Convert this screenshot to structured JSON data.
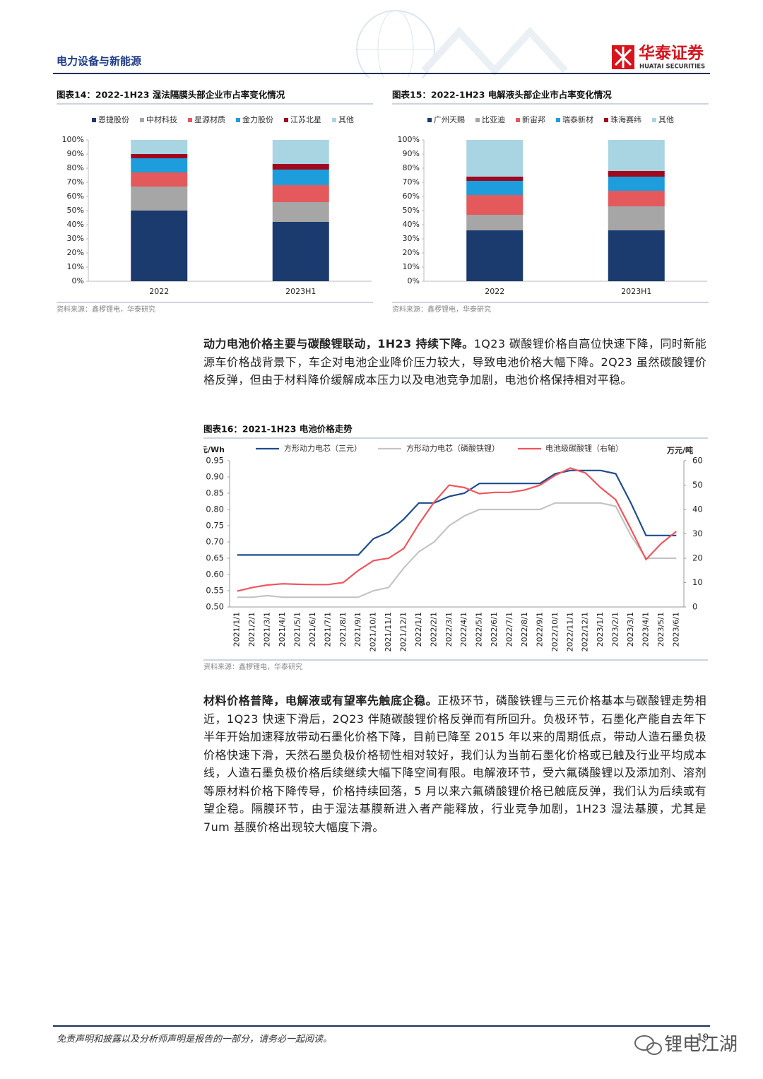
{
  "header": {
    "section": "电力设备与新能源",
    "brand": "华泰证券",
    "brand_en": "HUATAI SECURITIES"
  },
  "chart_data": [
    {
      "type": "bar",
      "stacked": true,
      "title": "图表14：2022-1H23 湿法隔膜头部企业市占率变化情况",
      "source": "资料来源：鑫椤锂电，华泰研究",
      "categories": [
        "2022",
        "2023H1"
      ],
      "series": [
        {
          "name": "恩捷股份",
          "color": "#1b3a6e",
          "values": [
            50,
            42
          ]
        },
        {
          "name": "中材科技",
          "color": "#a6a6a6",
          "values": [
            17,
            14
          ]
        },
        {
          "name": "星源材质",
          "color": "#e45a5c",
          "values": [
            10,
            12
          ]
        },
        {
          "name": "金力股份",
          "color": "#1d9ddb",
          "values": [
            10,
            11
          ]
        },
        {
          "name": "江苏北星",
          "color": "#a0081e",
          "values": [
            3,
            4
          ]
        },
        {
          "name": "其他",
          "color": "#a9d4e2",
          "values": [
            10,
            17
          ]
        }
      ],
      "ylim": [
        0,
        100
      ],
      "yticks": [
        {
          "value": 0,
          "label": "0%"
        },
        {
          "value": 10,
          "label": "10%"
        },
        {
          "value": 20,
          "label": "20%"
        },
        {
          "value": 30,
          "label": "30%"
        },
        {
          "value": 40,
          "label": "40%"
        },
        {
          "value": 50,
          "label": "50%"
        },
        {
          "value": 60,
          "label": "60%"
        },
        {
          "value": 70,
          "label": "70%"
        },
        {
          "value": 80,
          "label": "80%"
        },
        {
          "value": 90,
          "label": "90%"
        },
        {
          "value": 100,
          "label": "100%"
        }
      ]
    },
    {
      "type": "bar",
      "stacked": true,
      "title": "图表15：2022-1H23 电解液头部企业市占率变化情况",
      "source": "资料来源：鑫椤锂电，华泰研究",
      "categories": [
        "2022",
        "2023H1"
      ],
      "series": [
        {
          "name": "广州天赐",
          "color": "#1b3a6e",
          "values": [
            36,
            36
          ]
        },
        {
          "name": "比亚迪",
          "color": "#a6a6a6",
          "values": [
            11,
            17
          ]
        },
        {
          "name": "新宙邦",
          "color": "#e45a5c",
          "values": [
            14,
            11
          ]
        },
        {
          "name": "瑞泰新材",
          "color": "#1d9ddb",
          "values": [
            10,
            10
          ]
        },
        {
          "name": "珠海赛纬",
          "color": "#a0081e",
          "values": [
            3,
            4
          ]
        },
        {
          "name": "其他",
          "color": "#a9d4e2",
          "values": [
            26,
            22
          ]
        }
      ],
      "ylim": [
        0,
        100
      ],
      "yticks": [
        {
          "value": 0,
          "label": "0%"
        },
        {
          "value": 10,
          "label": "10%"
        },
        {
          "value": 20,
          "label": "20%"
        },
        {
          "value": 30,
          "label": "30%"
        },
        {
          "value": 40,
          "label": "40%"
        },
        {
          "value": 50,
          "label": "50%"
        },
        {
          "value": 60,
          "label": "60%"
        },
        {
          "value": 70,
          "label": "70%"
        },
        {
          "value": 80,
          "label": "80%"
        },
        {
          "value": 90,
          "label": "90%"
        },
        {
          "value": 100,
          "label": "100%"
        }
      ]
    },
    {
      "type": "line",
      "title": "图表16：2021-1H23 电池价格走势",
      "source": "资料来源：鑫椤锂电，华泰研究",
      "y_label": "元/Wh",
      "y2_label": "万元/吨",
      "categories": [
        "2021/1/1",
        "2021/2/1",
        "2021/3/1",
        "2021/4/1",
        "2021/5/1",
        "2021/6/1",
        "2021/7/1",
        "2021/8/1",
        "2021/9/1",
        "2021/10/1",
        "2021/11/1",
        "2021/12/1",
        "2022/1/1",
        "2022/2/1",
        "2022/3/1",
        "2022/4/1",
        "2022/5/1",
        "2022/6/1",
        "2022/7/1",
        "2022/8/1",
        "2022/9/1",
        "2022/10/1",
        "2022/11/1",
        "2022/12/1",
        "2023/1/1",
        "2023/2/1",
        "2023/3/1",
        "2023/4/1",
        "2023/5/1",
        "2023/6/1"
      ],
      "series": [
        {
          "name": "方形动力电芯（三元）",
          "color": "#1f4b8e",
          "values": [
            0.66,
            0.66,
            0.66,
            0.66,
            0.66,
            0.66,
            0.66,
            0.66,
            0.66,
            0.71,
            0.73,
            0.77,
            0.82,
            0.82,
            0.84,
            0.85,
            0.88,
            0.88,
            0.88,
            0.88,
            0.88,
            0.91,
            0.92,
            0.92,
            0.92,
            0.91,
            0.82,
            0.72,
            0.72,
            0.72
          ]
        },
        {
          "name": "方形动力电芯（磷酸铁锂）",
          "color": "#c4c4c4",
          "values": [
            0.53,
            0.53,
            0.535,
            0.53,
            0.53,
            0.53,
            0.53,
            0.53,
            0.53,
            0.55,
            0.56,
            0.62,
            0.67,
            0.7,
            0.75,
            0.78,
            0.8,
            0.8,
            0.8,
            0.8,
            0.8,
            0.82,
            0.82,
            0.82,
            0.82,
            0.81,
            0.72,
            0.65,
            0.65,
            0.65
          ]
        },
        {
          "name": "电池级碳酸锂（右轴）",
          "color": "#f0555e",
          "axis": "y2",
          "values": [
            6.5,
            8,
            9,
            9.5,
            9.3,
            9.2,
            9.2,
            10,
            15,
            19,
            20,
            24,
            34,
            43,
            50,
            49,
            46.5,
            47,
            47,
            48,
            50,
            54,
            57,
            55,
            49,
            44,
            32,
            19.5,
            26,
            31
          ]
        }
      ],
      "ylim": [
        0.5,
        0.95
      ],
      "yticks": [
        {
          "value": 0.5,
          "label": "0.50"
        },
        0.55,
        {
          "value": 0.6,
          "label": "0.60"
        },
        0.65,
        {
          "value": 0.7,
          "label": "0.70"
        },
        0.75,
        {
          "value": 0.8,
          "label": "0.80"
        },
        0.85,
        {
          "value": 0.9,
          "label": "0.90"
        },
        0.95
      ],
      "y2lim": [
        0,
        60
      ],
      "y2ticks": [
        0,
        10,
        20,
        30,
        40,
        50,
        60
      ]
    }
  ],
  "paragraphs": [
    {
      "lead": "动力电池价格主要与碳酸锂联动，1H23 持续下降。",
      "text": "1Q23 碳酸锂价格自高位快速下降，同时新能源车价格战背景下，车企对电池企业降价压力较大，导致电池价格大幅下降。2Q23 虽然碳酸锂价格反弹，但由于材料降价缓解成本压力以及电池竞争加剧，电池价格保持相对平稳。"
    },
    {
      "lead": "材料价格普降，电解液或有望率先触底企稳。",
      "text": "正极环节，磷酸铁锂与三元价格基本与碳酸锂走势相近，1Q23 快速下滑后，2Q23 伴随碳酸锂价格反弹而有所回升。负极环节，石墨化产能自去年下半年开始加速释放带动石墨化价格下降，目前已降至 2015 年以来的周期低点，带动人造石墨负极价格快速下滑，天然石墨负极价格韧性相对较好，我们认为当前石墨化价格或已触及行业平均成本线，人造石墨负极价格后续继续大幅下降空间有限。电解液环节，受六氟磷酸锂以及添加剂、溶剂等原材料价格下降传导，价格持续回落，5 月以来六氟磷酸锂价格已触底反弹，我们认为后续或有望企稳。隔膜环节，由于湿法基膜新进入者产能释放，行业竞争加剧，1H23 湿法基膜，尤其是 7um 基膜价格出现较大幅度下滑。"
    }
  ],
  "footer": {
    "disclaimer": "免责声明和披露以及分析师声明是报告的一部分，请务必一起阅读。",
    "page": "10",
    "watermark": "锂电江湖"
  }
}
